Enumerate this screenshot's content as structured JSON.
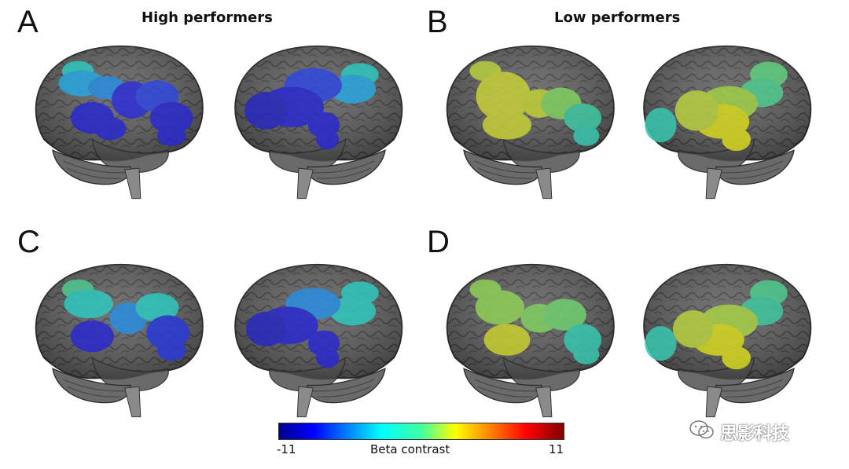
{
  "panels": {
    "A": {
      "letter": "A",
      "title": "High performers"
    },
    "B": {
      "letter": "B",
      "title": "Low performers"
    },
    "C": {
      "letter": "C"
    },
    "D": {
      "letter": "D"
    }
  },
  "colorbar": {
    "min_label": "-11",
    "title": "Beta contrast",
    "max_label": "11",
    "colormap": "jet",
    "min": -11,
    "max": 11
  },
  "colors": {
    "brain_gray": "#5f5f5f",
    "brain_dark": "#3c3c3c",
    "deep_blue": "#2020d0",
    "mid_blue": "#3a55e0",
    "light_blue": "#2a90e0",
    "cyan": "#30c8c0",
    "green_yellow": "#b8d040",
    "yellow": "#d8d820"
  },
  "watermark": {
    "text": "思影科技",
    "icon": "wechat-icon"
  }
}
